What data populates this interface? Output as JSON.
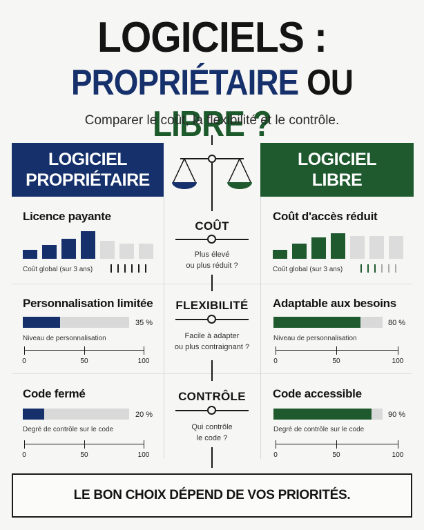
{
  "title": {
    "line1": "LOGICIELS :",
    "line2_part1": "PROPRIÉTAIRE",
    "line2_part2": "OU",
    "line2_part3": "LIBRE ?"
  },
  "subtitle": "Comparer le coût, la flexibilité et le contrôle.",
  "colors": {
    "proprietary": "#15306b",
    "libre": "#1e5a2e",
    "neutral_bar": "#dcdcdc"
  },
  "columns": {
    "left_header": [
      "LOGICIEL",
      "PROPRIÉTAIRE"
    ],
    "right_header": [
      "LOGICIEL",
      "LIBRE"
    ]
  },
  "cost": {
    "center_title": "COÛT",
    "center_desc": [
      "Plus élevé",
      "ou plus réduit ?"
    ],
    "left": {
      "title": "Licence payante",
      "caption": "Coût global (sur 3 ans)",
      "bar_levels": [
        0.3,
        0.45,
        0.65,
        0.9,
        0.6,
        0.5,
        0.5
      ],
      "filled_count": 4
    },
    "right": {
      "title": "Coût d'accès réduit",
      "caption": "Coût global (sur 3 ans)",
      "bar_levels": [
        0.3,
        0.5,
        0.7,
        0.85,
        0.75,
        0.75,
        0.75
      ],
      "filled_count": 4
    }
  },
  "flexibility": {
    "center_title": "FLEXIBILITÉ",
    "center_desc": [
      "Facile à adapter",
      "ou plus contraignant ?"
    ],
    "left": {
      "title": "Personnalisation limitée",
      "value": 35,
      "value_label": "35 %",
      "caption": "Niveau de personnalisation"
    },
    "right": {
      "title": "Adaptable aux besoins",
      "value": 80,
      "value_label": "80 %",
      "caption": "Niveau de personnalisation"
    }
  },
  "control": {
    "center_title": "CONTRÔLE",
    "center_desc": [
      "Qui contrôle",
      "le code ?"
    ],
    "left": {
      "title": "Code fermé",
      "value": 20,
      "value_label": "20 %",
      "caption": "Degré de contrôle sur le code"
    },
    "right": {
      "title": "Code accessible",
      "value": 90,
      "value_label": "90 %",
      "caption": "Degré de contrôle sur le code"
    }
  },
  "axis_labels": [
    "0",
    "50",
    "100"
  ],
  "footer": "LE BON CHOIX DÉPEND DE VOS PRIORITÉS."
}
